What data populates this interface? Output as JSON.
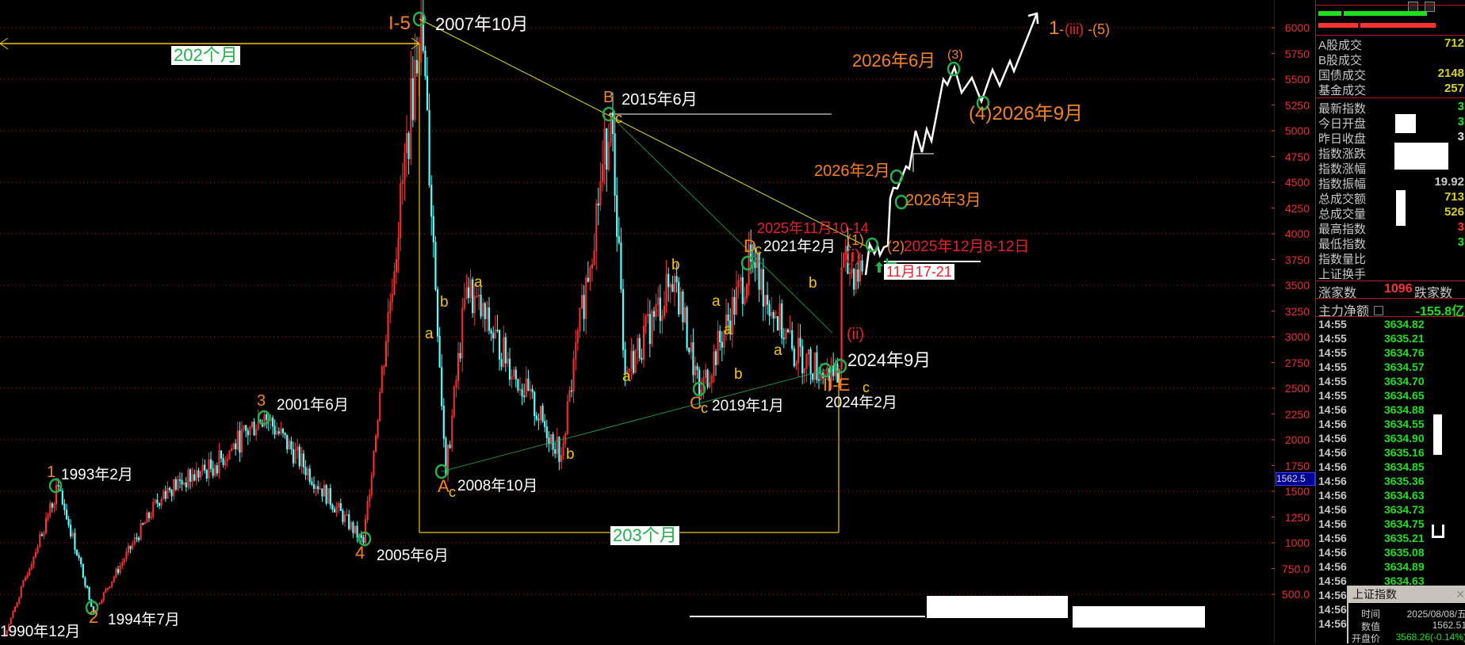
{
  "chart_data": {
    "type": "candlestick",
    "title": "",
    "ylim": [
      0,
      6250
    ],
    "y_ticks": [
      "6000",
      "5750",
      "5500",
      "5250",
      "5000",
      "4750",
      "4500",
      "4250",
      "4000",
      "3750",
      "3500",
      "3250",
      "3000",
      "2750",
      "2500",
      "2250",
      "2000",
      "1750",
      "1500",
      "1250",
      "1000",
      "750.0",
      "500.0"
    ],
    "grid": "dotted red every 500",
    "current_marker": "1562.5",
    "pivots": [
      {
        "date": "1990-12",
        "price": 100
      },
      {
        "date": "1993-02",
        "price": 1550
      },
      {
        "date": "1994-07",
        "price": 330
      },
      {
        "date": "1997-05",
        "price": 1500
      },
      {
        "date": "1999-06",
        "price": 1750
      },
      {
        "date": "2001-06",
        "price": 2245
      },
      {
        "date": "2005-06",
        "price": 1000
      },
      {
        "date": "2007-10",
        "price": 6124
      },
      {
        "date": "2008-10",
        "price": 1664
      },
      {
        "date": "2009-08",
        "price": 3478
      },
      {
        "date": "2013-06",
        "price": 1850
      },
      {
        "date": "2015-06",
        "price": 5178
      },
      {
        "date": "2016-01",
        "price": 2638
      },
      {
        "date": "2018-01",
        "price": 3587
      },
      {
        "date": "2019-01",
        "price": 2440
      },
      {
        "date": "2021-02",
        "price": 3731
      },
      {
        "date": "2022-10",
        "price": 2885
      },
      {
        "date": "2024-02",
        "price": 2635
      },
      {
        "date": "2024-09",
        "price": 2689
      },
      {
        "date": "2024-10",
        "price": 3674
      },
      {
        "date": "2025-08",
        "price": 3635
      }
    ],
    "colors": {
      "up": "#ff3232",
      "down": "#54ffff",
      "grid": "#b01818",
      "axis": "#e83030"
    }
  },
  "annotations": {
    "wave_i5": "I-5",
    "peak_2007": "2007年10月",
    "months_202": "202个月",
    "months_203": "203个月",
    "b_label": "B",
    "b_c": "c",
    "b_date": "2015年6月",
    "a_label": "A",
    "a_c": "c",
    "a_date": "2008年10月",
    "c_label": "C",
    "c_c": "c",
    "c_date": "2019年1月",
    "d_label": "D",
    "d_c": "c",
    "d_date": "2021年2月",
    "ii_e": "II-E",
    "e_c": "c",
    "date_2024_9": "2024年9月",
    "date_2024_2": "2024年2月",
    "wave_ii": "(ii)",
    "wave_i": "(i)",
    "date_2025_11": "2025年11月10-14",
    "wave_1": "(1)",
    "wave_2": "(2)",
    "date_2025_12": "2025年12月8-12日",
    "date_11_17": "11月17-21",
    "date_2026_2": "2026年2月",
    "date_2026_3": "2026年3月",
    "date_2026_6": "2026年6月",
    "wave_3": "(3)",
    "wave_4_date": "(4)2026年9月",
    "target_1": "1",
    "target_dash1": "-",
    "target_iii": "(iii)",
    "target_5": "-(5)",
    "w1": "1",
    "w1_date": "1993年2月",
    "w2": "2",
    "w2_date": "1994年7月",
    "start_date": "1990年12月",
    "w3": "3",
    "w3_date": "2001年6月",
    "w4": "4",
    "w4_date": "2005年6月",
    "sub": [
      "b",
      "a",
      "a",
      "a",
      "b",
      "b",
      "a",
      "a",
      "b",
      "a",
      "b"
    ]
  },
  "panel": {
    "group1": [
      {
        "label": "A股成交",
        "value": "712",
        "color": "#d8d020"
      },
      {
        "label": "B股成交",
        "value": "",
        "color": "#d8d020"
      },
      {
        "label": "国债成交",
        "value": "2148",
        "color": "#d8d020"
      },
      {
        "label": "基金成交",
        "value": "257",
        "color": "#d8d020"
      }
    ],
    "group2": [
      {
        "label": "最新指数",
        "value": "3",
        "color": "#1ee01e"
      },
      {
        "label": "今日开盘",
        "value": "3",
        "color": "#1ee01e"
      },
      {
        "label": "昨日收盘",
        "value": "3",
        "color": "#e0e0e0"
      },
      {
        "label": "指数涨跌",
        "value": "",
        "color": "#e0e0e0"
      },
      {
        "label": "指数涨幅",
        "value": "",
        "color": "#e0e0e0"
      },
      {
        "label": "指数振幅",
        "value": "19.92",
        "color": "#c8c8c8"
      },
      {
        "label": "总成交额",
        "value": "713",
        "color": "#d8d020"
      },
      {
        "label": "总成交量",
        "value": "526",
        "color": "#d8d020"
      },
      {
        "label": "最高指数",
        "value": "3",
        "color": "#ff3232"
      },
      {
        "label": "最低指数",
        "value": "3",
        "color": "#1ee01e"
      },
      {
        "label": "指数量比",
        "value": "",
        "color": "#c8c8c8"
      },
      {
        "label": "上证换手",
        "value": "",
        "color": "#c8c8c8"
      }
    ],
    "rise_label": "涨家数",
    "rise_count": "1096",
    "fall_label": "跌家数",
    "main_net_label": "主力净额",
    "main_net_value": "-155.8亿",
    "ticks": [
      {
        "time": "14:55",
        "price": "3634.82"
      },
      {
        "time": "14:55",
        "price": "3635.21"
      },
      {
        "time": "14:55",
        "price": "3634.76"
      },
      {
        "time": "14:55",
        "price": "3634.57"
      },
      {
        "time": "14:55",
        "price": "3634.70"
      },
      {
        "time": "14:55",
        "price": "3634.65"
      },
      {
        "time": "14:56",
        "price": "3634.88"
      },
      {
        "time": "14:56",
        "price": "3634.55"
      },
      {
        "time": "14:56",
        "price": "3634.90"
      },
      {
        "time": "14:56",
        "price": "3635.16"
      },
      {
        "time": "14:56",
        "price": "3634.85"
      },
      {
        "time": "14:56",
        "price": "3635.36"
      },
      {
        "time": "14:56",
        "price": "3634.63"
      },
      {
        "time": "14:56",
        "price": "3634.73"
      },
      {
        "time": "14:56",
        "price": "3634.75"
      },
      {
        "time": "14:56",
        "price": "3635.21"
      },
      {
        "time": "14:56",
        "price": "3635.08"
      },
      {
        "time": "14:56",
        "price": "3634.89"
      },
      {
        "time": "14:56",
        "price": "3634.63"
      },
      {
        "time": "14:56",
        "price": ""
      },
      {
        "time": "14:56",
        "price": ""
      },
      {
        "time": "14:56",
        "price": ""
      }
    ]
  },
  "popup": {
    "title": "上证指数",
    "time_label": "时间",
    "time_value": "2025/08/08/五",
    "value_label": "数值",
    "value_value": "1562.51",
    "open_label": "开盘价",
    "open_value": "3568.26(-0.14%)"
  }
}
